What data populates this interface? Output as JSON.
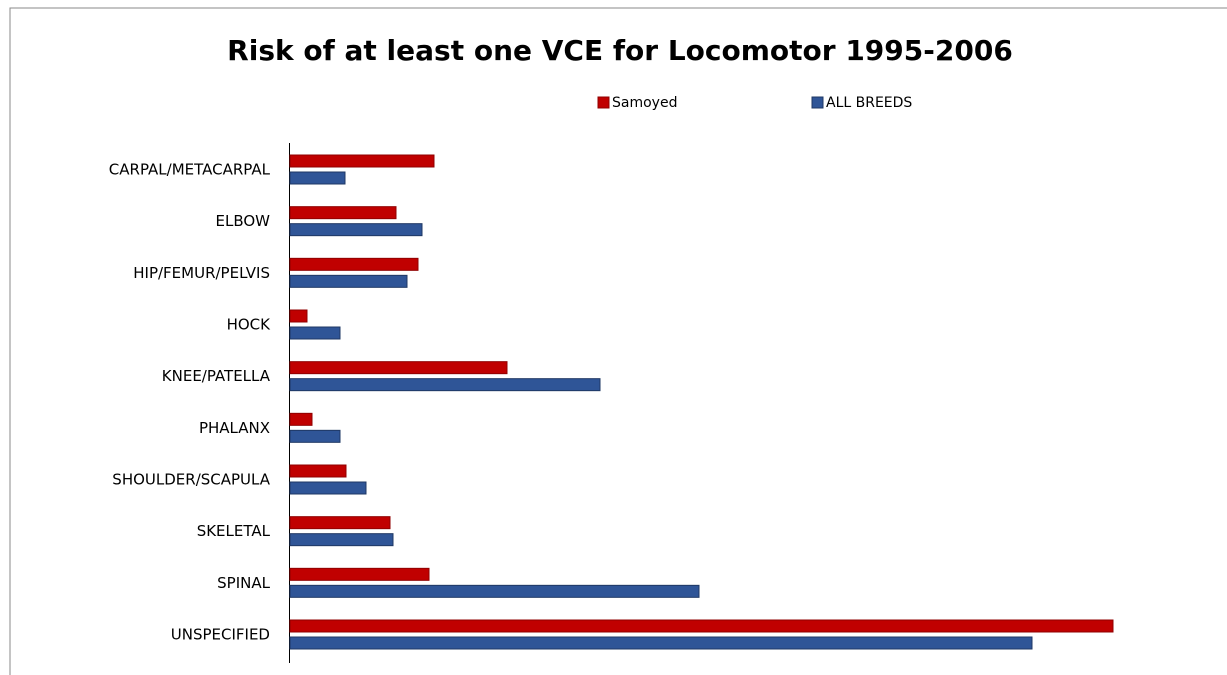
{
  "chart_data": {
    "type": "hbar",
    "title": "Risk of at least one VCE for Locomotor 1995-2006",
    "categories": [
      "CARPAL/METACARPAL",
      "ELBOW",
      "HIP/FEMUR/PELVIS",
      "HOCK",
      "KNEE/PATELLA",
      "PHALANX",
      "SHOULDER/SCAPULA",
      "SKELETAL",
      "SPINAL",
      "UNSPECIFIED"
    ],
    "series": [
      {
        "name": "Samoyed",
        "color": "#c00000",
        "values": [
          1.44,
          1.06,
          1.28,
          0.17,
          2.17,
          0.22,
          0.56,
          1.0,
          1.39,
          8.23
        ]
      },
      {
        "name": "ALL BREEDS",
        "color": "#2f5597",
        "values": [
          0.55,
          1.32,
          1.17,
          0.5,
          3.1,
          0.5,
          0.76,
          1.03,
          4.09,
          7.42
        ]
      }
    ],
    "xlim": [
      0,
      8.41
    ],
    "legend": "top"
  }
}
